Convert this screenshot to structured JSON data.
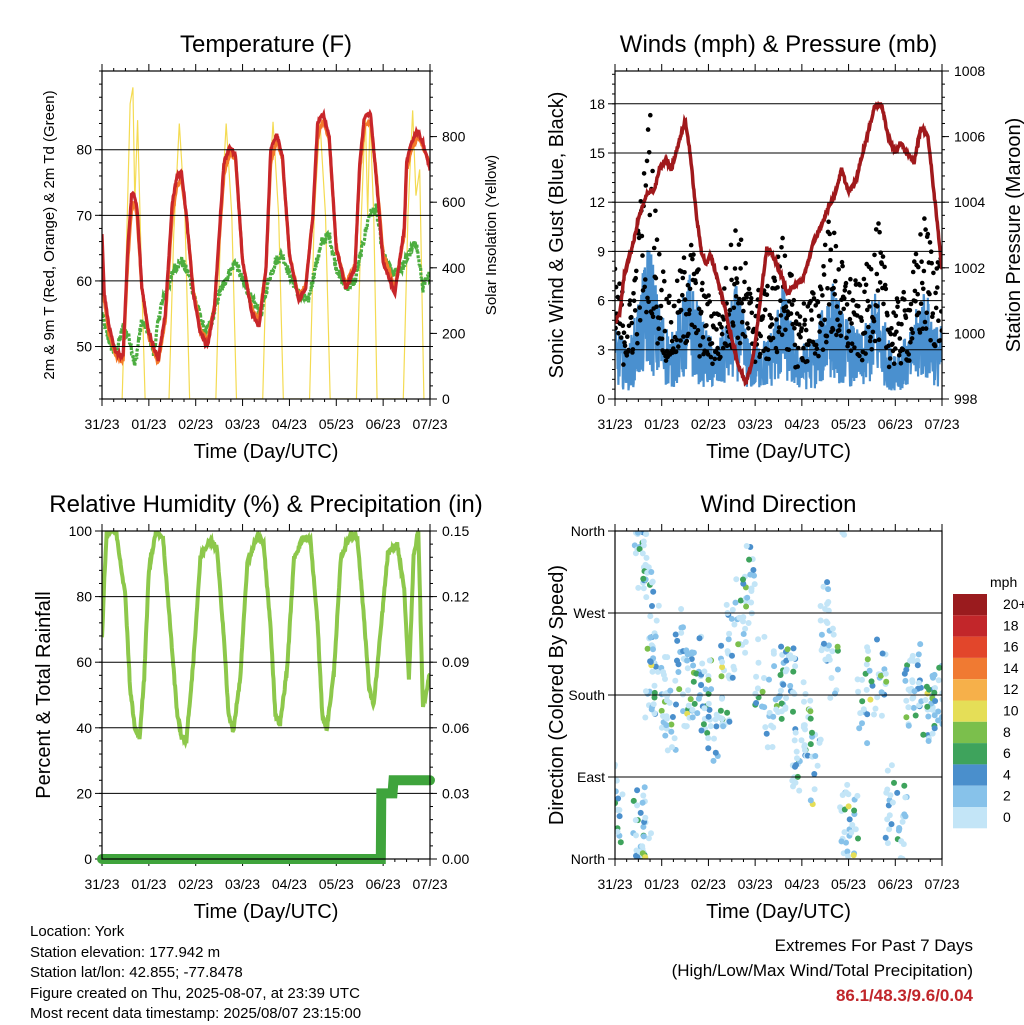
{
  "time_axis": {
    "xlabel": "Time (Day/UTC)",
    "ticks": [
      "31/23",
      "01/23",
      "02/23",
      "03/23",
      "04/23",
      "05/23",
      "06/23",
      "07/23"
    ]
  },
  "chart_data": [
    {
      "type": "line",
      "id": "temperature",
      "title": "Temperature (F)",
      "ylabel": "2m & 9m T (Red, Orange) & 2m Td (Green)",
      "y2label": "Solar Insolation (Yellow)",
      "ylim": [
        42,
        92
      ],
      "yticks": [
        50,
        60,
        70,
        80
      ],
      "y2lim": [
        0,
        1000
      ],
      "y2ticks": [
        0,
        200,
        400,
        600,
        800
      ],
      "xlim": [
        0,
        7.0
      ],
      "grid": true,
      "series": [
        {
          "axis": "left",
          "color": "#c8262a",
          "width": 3.2,
          "x": [
            0,
            0.05,
            0.15,
            0.3,
            0.45,
            0.55,
            0.63,
            0.68,
            0.75,
            0.85,
            1.0,
            1.2,
            1.35,
            1.5,
            1.6,
            1.7,
            1.8,
            1.95,
            2.1,
            2.25,
            2.4,
            2.6,
            2.72,
            2.85,
            3.0,
            3.2,
            3.35,
            3.5,
            3.6,
            3.73,
            3.85,
            4.0,
            4.2,
            4.35,
            4.5,
            4.6,
            4.72,
            4.85,
            5.0,
            5.2,
            5.4,
            5.5,
            5.6,
            5.73,
            5.85,
            6.0,
            6.25,
            6.45,
            6.5,
            6.6,
            6.73,
            6.85,
            7.0
          ],
          "values": [
            67,
            58,
            53,
            49,
            48.5,
            65,
            73,
            73.5,
            71,
            59,
            52,
            48,
            55,
            72,
            76,
            76.5,
            70,
            58,
            52,
            50,
            56,
            78,
            80.5,
            79,
            63,
            55,
            53,
            62,
            80,
            82.5,
            79,
            64,
            57,
            59,
            70,
            84,
            85.5,
            82,
            65,
            59,
            62,
            78,
            85,
            85.5,
            76,
            63,
            58,
            68,
            78,
            81,
            83,
            81,
            77
          ]
        },
        {
          "axis": "left",
          "color": "#f47a2a",
          "width": 3.2,
          "x": [
            0,
            0.05,
            0.15,
            0.3,
            0.45,
            0.55,
            0.63,
            0.68,
            0.75,
            0.85,
            1.0,
            1.2,
            1.35,
            1.5,
            1.6,
            1.7,
            1.8,
            1.95,
            2.1,
            2.25,
            2.4,
            2.6,
            2.72,
            2.85,
            3.0,
            3.2,
            3.35,
            3.5,
            3.6,
            3.73,
            3.85,
            4.0,
            4.2,
            4.35,
            4.5,
            4.6,
            4.72,
            4.85,
            5.0,
            5.2,
            5.4,
            5.5,
            5.6,
            5.73,
            5.85,
            6.0,
            6.25,
            6.45,
            6.5,
            6.6,
            6.73,
            6.85,
            7.0
          ],
          "values": [
            66,
            57,
            52,
            48.5,
            48,
            63,
            71,
            72,
            70,
            59,
            51.5,
            47.5,
            54,
            70,
            74.5,
            75.5,
            70,
            58.5,
            52.5,
            51,
            56,
            76,
            79.5,
            78.5,
            63,
            55.5,
            54,
            62,
            78,
            81.5,
            78.5,
            64,
            57.5,
            59.5,
            70,
            82,
            84.5,
            81.5,
            65,
            59.5,
            62.5,
            77,
            83.5,
            84.5,
            76.5,
            64,
            59,
            67,
            77,
            80,
            82,
            80.5,
            77.5
          ]
        },
        {
          "axis": "left",
          "color": "#4cad3f",
          "width": 3.2,
          "x": [
            0,
            0.1,
            0.2,
            0.3,
            0.45,
            0.6,
            0.7,
            0.85,
            1.0,
            1.1,
            1.25,
            1.4,
            1.55,
            1.7,
            1.85,
            2.0,
            2.2,
            2.35,
            2.5,
            2.7,
            2.85,
            3.0,
            3.2,
            3.4,
            3.55,
            3.7,
            3.85,
            4.0,
            4.2,
            4.4,
            4.55,
            4.7,
            4.85,
            5.0,
            5.2,
            5.4,
            5.55,
            5.7,
            5.85,
            6.0,
            6.2,
            6.4,
            6.55,
            6.7,
            6.85,
            7.0
          ],
          "values": [
            55,
            52,
            50,
            49,
            53,
            51,
            47,
            54,
            52,
            49,
            56,
            59,
            62,
            63,
            61,
            57,
            52,
            54,
            58,
            61,
            63,
            60,
            57,
            55,
            60,
            63,
            64,
            61,
            58,
            57,
            62,
            66,
            67,
            62,
            59,
            60,
            65,
            70,
            71,
            64,
            61,
            62,
            64,
            66,
            59,
            61
          ]
        },
        {
          "axis": "right",
          "color": "#f4db52",
          "width": 1.2,
          "x": [
            0.43,
            0.52,
            0.6,
            0.66,
            0.7,
            0.76,
            0.84,
            0.92,
            1.43,
            1.53,
            1.65,
            1.77,
            1.87,
            2.43,
            2.53,
            2.65,
            2.77,
            2.87,
            3.43,
            3.53,
            3.65,
            3.77,
            3.87,
            4.43,
            4.53,
            4.65,
            4.77,
            4.87,
            5.43,
            5.53,
            5.62,
            5.67,
            5.72,
            5.8,
            5.87,
            6.43,
            6.53,
            6.63,
            6.7,
            6.78,
            6.87
          ],
          "values": [
            0,
            450,
            900,
            950,
            600,
            850,
            400,
            0,
            0,
            500,
            840,
            560,
            0,
            0,
            520,
            840,
            560,
            0,
            0,
            540,
            845,
            560,
            0,
            0,
            560,
            850,
            560,
            0,
            0,
            540,
            870,
            560,
            860,
            560,
            0,
            0,
            560,
            880,
            620,
            700,
            0
          ]
        }
      ]
    },
    {
      "type": "scatter",
      "id": "winds",
      "title": "Winds (mph) & Pressure (mb)",
      "ylabel": "Sonic Wind & Gust (Blue, Black)",
      "y2label": "Station Pressure (Maroon)",
      "ylim": [
        0,
        20
      ],
      "yticks": [
        0,
        3,
        6,
        9,
        12,
        15,
        18
      ],
      "y2lim": [
        998,
        1008
      ],
      "y2ticks": [
        998,
        1000,
        1002,
        1004,
        1006,
        1008
      ],
      "xlim": [
        0,
        7.0
      ],
      "grid": true,
      "series": [
        {
          "kind": "envelope",
          "axis": "left",
          "color": "#4a90cf",
          "x": [
            0,
            0.3,
            0.6,
            0.75,
            0.9,
            1.2,
            1.6,
            1.9,
            2.2,
            2.6,
            2.9,
            3.3,
            3.6,
            3.9,
            4.3,
            4.6,
            4.9,
            5.3,
            5.6,
            5.9,
            6.3,
            6.6,
            6.9
          ],
          "values": [
            3.5,
            2.5,
            6,
            8,
            5,
            3,
            6,
            3.5,
            2.5,
            5.5,
            2.5,
            3,
            5.5,
            2.5,
            3,
            6,
            4,
            3,
            5.5,
            2.5,
            3,
            5.5,
            3.5
          ]
        },
        {
          "kind": "gust",
          "axis": "left",
          "color": "#000000",
          "x": [
            0,
            0.3,
            0.6,
            0.75,
            0.9,
            1.2,
            1.6,
            1.9,
            2.2,
            2.6,
            2.9,
            3.3,
            3.6,
            3.9,
            4.3,
            4.6,
            4.9,
            5.3,
            5.6,
            5.9,
            6.3,
            6.6,
            6.9
          ],
          "values": [
            7,
            5,
            12,
            16,
            9,
            5,
            9,
            6,
            5,
            10,
            6,
            6,
            9,
            5,
            6,
            10,
            7,
            6,
            10,
            5,
            6,
            10,
            8
          ]
        },
        {
          "kind": "line",
          "axis": "right",
          "color": "#a0191c",
          "x": [
            0,
            0.1,
            0.2,
            0.3,
            0.4,
            0.5,
            0.6,
            0.7,
            0.85,
            0.95,
            1.1,
            1.2,
            1.4,
            1.5,
            1.6,
            1.75,
            1.85,
            1.95,
            2.05,
            2.2,
            2.35,
            2.5,
            2.65,
            2.8,
            2.95,
            3.05,
            3.15,
            3.25,
            3.4,
            3.55,
            3.7,
            3.85,
            4.0,
            4.1,
            4.25,
            4.4,
            4.55,
            4.7,
            4.85,
            5.0,
            5.15,
            5.3,
            5.45,
            5.55,
            5.7,
            5.85,
            6.0,
            6.1,
            6.25,
            6.4,
            6.55,
            6.7,
            6.85,
            7.0
          ],
          "values": [
            1000.3,
            1000.6,
            1001.8,
            1002.3,
            1002.8,
            1003.5,
            1003.9,
            1004.3,
            1004.4,
            1005.0,
            1005.3,
            1005.0,
            1006.0,
            1006.5,
            1005.6,
            1003.5,
            1002.5,
            1002.1,
            1002.4,
            1001.6,
            1000.8,
            999.8,
            999.0,
            998.5,
            999.2,
            1000.3,
            1001.5,
            1002.6,
            1002.3,
            1001.8,
            1001.2,
            1001.5,
            1001.6,
            1002.0,
            1002.8,
            1003.2,
            1003.8,
            1004.2,
            1005.0,
            1004.3,
            1004.6,
            1005.5,
            1006.3,
            1006.9,
            1007.0,
            1006.0,
            1005.5,
            1005.8,
            1005.5,
            1005.2,
            1006.3,
            1006.0,
            1004.0,
            1002.0
          ]
        }
      ]
    },
    {
      "type": "line",
      "id": "humidity",
      "title": "Relative Humidity (%) & Precipitation (in)",
      "ylabel": "Percent & Total Rainfall",
      "ylim": [
        0,
        100
      ],
      "yticks": [
        0,
        20,
        40,
        60,
        80,
        100
      ],
      "y2lim": [
        0,
        0.15
      ],
      "y2ticks": [
        "0.00",
        "0.03",
        "0.06",
        "0.09",
        "0.12",
        "0.15"
      ],
      "xlim": [
        0,
        7.0
      ],
      "grid": true,
      "series": [
        {
          "axis": "left",
          "color": "#8dc84b",
          "width": 4,
          "x": [
            0,
            0.05,
            0.1,
            0.2,
            0.3,
            0.5,
            0.6,
            0.7,
            0.8,
            0.9,
            1.0,
            1.15,
            1.3,
            1.45,
            1.6,
            1.7,
            1.8,
            1.95,
            2.1,
            2.3,
            2.45,
            2.6,
            2.7,
            2.8,
            2.95,
            3.1,
            3.3,
            3.45,
            3.6,
            3.7,
            3.8,
            3.95,
            4.1,
            4.3,
            4.45,
            4.6,
            4.7,
            4.8,
            4.95,
            5.1,
            5.3,
            5.45,
            5.6,
            5.7,
            5.8,
            5.95,
            6.1,
            6.3,
            6.45,
            6.55,
            6.65,
            6.75,
            6.85,
            7.0
          ],
          "values": [
            67,
            85,
            100,
            100,
            100,
            80,
            52,
            40,
            37,
            55,
            88,
            100,
            98,
            72,
            45,
            37,
            36,
            60,
            92,
            97,
            95,
            68,
            44,
            39,
            55,
            90,
            98,
            96,
            70,
            44,
            41,
            58,
            92,
            98,
            97,
            72,
            44,
            40,
            57,
            92,
            99,
            98,
            72,
            52,
            47,
            70,
            93,
            96,
            82,
            55,
            92,
            100,
            46,
            57
          ]
        },
        {
          "axis": "right",
          "color": "#3fa43c",
          "width": 10,
          "x": [
            0,
            5.95,
            5.96,
            6.2,
            6.22,
            7.0
          ],
          "values": [
            0,
            0,
            0.03,
            0.03,
            0.036,
            0.036
          ]
        }
      ]
    },
    {
      "type": "scatter",
      "id": "wind_direction",
      "title": "Wind Direction",
      "ylabel": "Direction (Colored By Speed)",
      "ylim": [
        0,
        360
      ],
      "yticks": [
        "North",
        "East",
        "South",
        "West",
        "North"
      ],
      "xlim": [
        0,
        7.0
      ],
      "grid": true,
      "legend": {
        "title": "mph",
        "position": "right",
        "entries": [
          "0",
          "2",
          "4",
          "6",
          "8",
          "10",
          "12",
          "14",
          "16",
          "18",
          "20+"
        ],
        "colors": [
          "#c3e5f7",
          "#87c2ea",
          "#4a8fcc",
          "#3ea35c",
          "#7bbf4c",
          "#e5de57",
          "#f6b04a",
          "#f07a32",
          "#e2462b",
          "#c2262a",
          "#9a1b1e"
        ]
      },
      "series": [
        {
          "name": "cluster",
          "x": [
            0.05,
            0.5,
            0.55,
            0.6,
            0.7,
            0.75,
            0.85,
            1.1,
            1.2,
            1.4,
            1.55,
            1.75,
            1.95,
            2.1,
            2.35,
            2.5,
            2.7,
            2.9,
            3.1,
            3.3,
            3.5,
            3.75,
            3.9,
            4.1,
            4.3,
            4.5,
            4.7,
            4.9,
            5.1,
            5.3,
            5.5,
            5.7,
            5.9,
            6.15,
            6.3,
            6.5,
            6.7,
            6.9
          ],
          "values": [
            60,
            20,
            40,
            330,
            345,
            200,
            250,
            180,
            160,
            230,
            190,
            200,
            180,
            150,
            190,
            240,
            270,
            300,
            200,
            160,
            190,
            200,
            120,
            150,
            100,
            260,
            220,
            40,
            30,
            170,
            190,
            200,
            60,
            40,
            180,
            200,
            160,
            180
          ]
        }
      ]
    }
  ],
  "info": {
    "location": "Location: York",
    "elevation": "Station elevation: 177.942 m",
    "latlon": "Station lat/lon: 42.855; -77.8478",
    "created": "Figure created on Thu, 2025-08-07, at 23:39 UTC",
    "recent": "Most recent data timestamp: 2025/08/07 23:15:00"
  },
  "extremes": {
    "title": "Extremes For Past 7 Days",
    "subtitle": "(High/Low/Max Wind/Total Precipitation)",
    "values": "86.1/48.3/9.6/0.04"
  }
}
